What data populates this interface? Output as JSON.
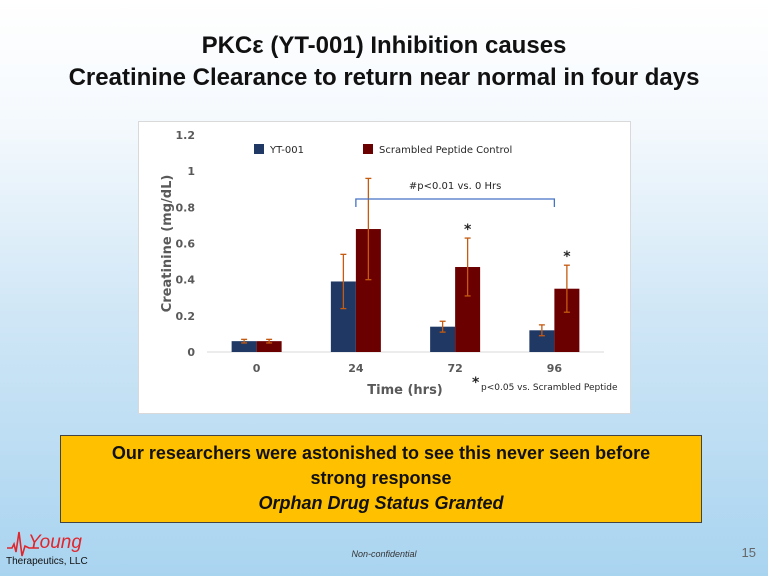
{
  "slide": {
    "title_line1": "PKCε (YT-001) Inhibition causes",
    "title_line2": "Creatinine Clearance to return near normal in four days",
    "callout_line1": "Our researchers were astonished to see this never seen before",
    "callout_line2": "strong response",
    "callout_line3": "Orphan Drug Status Granted",
    "logo_word": "Young",
    "logo_sub": "Therapeutics, LLC",
    "footer_note": "Non-confidential",
    "page_number": "15"
  },
  "colors": {
    "yt001": "#1f3864",
    "scrambled": "#6b0000",
    "error_bar": "#c55a11",
    "bracket": "#4472c4"
  },
  "chart_data": {
    "type": "bar",
    "categories": [
      "0",
      "24",
      "72",
      "96"
    ],
    "series": [
      {
        "name": "YT-001",
        "values": [
          0.06,
          0.39,
          0.14,
          0.12
        ],
        "errors": [
          0.01,
          0.15,
          0.03,
          0.03
        ]
      },
      {
        "name": "Scrambled Peptide Control",
        "values": [
          0.06,
          0.68,
          0.47,
          0.35
        ],
        "errors": [
          0.01,
          0.28,
          0.16,
          0.13
        ]
      }
    ],
    "xlabel": "Time (hrs)",
    "ylabel": "Creatinine (mg/dL)",
    "ylim": [
      0,
      1.2
    ],
    "yticks": [
      0,
      0.2,
      0.4,
      0.6,
      0.8,
      1,
      1.2
    ],
    "ytick_labels": [
      "0",
      "0.2",
      "0.4",
      "0.6",
      "0.8",
      "1",
      "1.2"
    ],
    "legend_position": "top",
    "grid": false,
    "significance_bracket": {
      "label": "#p<0.01 vs. 0 Hrs",
      "from_category": "24",
      "to_category": "96"
    },
    "star_markers": [
      {
        "category": "72",
        "series": "Scrambled Peptide Control",
        "label": "*"
      },
      {
        "category": "96",
        "series": "Scrambled Peptide Control",
        "label": "*"
      }
    ],
    "footnote_star": "*",
    "footnote_text": "p<0.05 vs. Scrambled Peptide"
  }
}
